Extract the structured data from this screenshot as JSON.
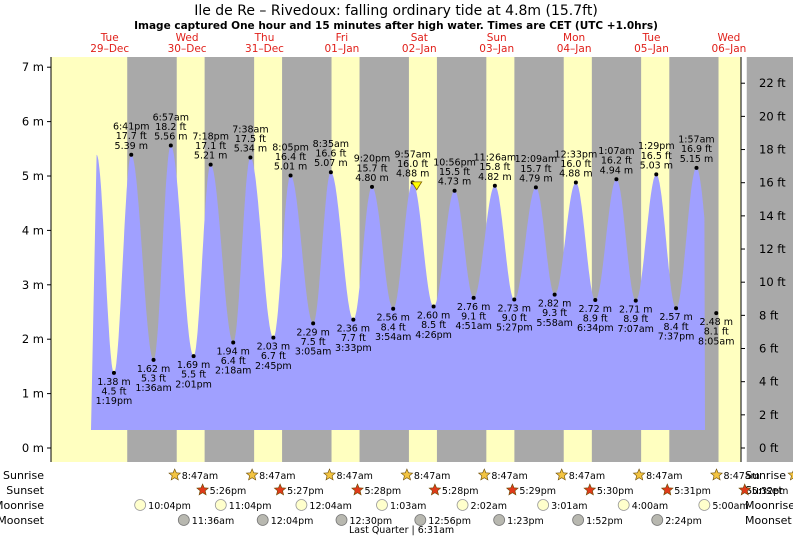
{
  "title": "Ile de Re – Rivedoux: falling  ordinary tide at 4.8m (15.7ft)",
  "subtitle": "Image captured One hour and 15 minutes after high water. Times are CET (UTC +1.0hrs)",
  "colors": {
    "night": "#a9a9a9",
    "day": "#ffffc0",
    "water": "#a0a0ff",
    "accent": "#e0201a"
  },
  "chart_data": {
    "type": "area",
    "ylim_m": [
      -0.25,
      7.3
    ],
    "yticks_m": [
      0,
      1,
      2,
      3,
      4,
      5,
      6,
      7
    ],
    "yticks_m_labels": [
      "0 m",
      "1 m",
      "2 m",
      "3 m",
      "4 m",
      "5 m",
      "6 m",
      "7 m"
    ],
    "yticks_ft": [
      0,
      2,
      4,
      6,
      8,
      10,
      12,
      14,
      16,
      18,
      20,
      22
    ],
    "yticks_ft_labels": [
      "0 ft",
      "2 ft",
      "4 ft",
      "6 ft",
      "8 ft",
      "10 ft",
      "12 ft",
      "14 ft",
      "16 ft",
      "18 ft",
      "20 ft",
      "22 ft"
    ],
    "days": [
      {
        "dow": "Tue",
        "date": "29–Dec"
      },
      {
        "dow": "Wed",
        "date": "30–Dec"
      },
      {
        "dow": "Thu",
        "date": "31–Dec"
      },
      {
        "dow": "Fri",
        "date": "01–Jan"
      },
      {
        "dow": "Sat",
        "date": "02–Jan"
      },
      {
        "dow": "Sun",
        "date": "03–Jan"
      },
      {
        "dow": "Mon",
        "date": "04–Jan"
      },
      {
        "dow": "Tue",
        "date": "05–Jan"
      },
      {
        "dow": "Wed",
        "date": "06–Jan"
      }
    ],
    "tides": [
      {
        "type": "low",
        "day": 0,
        "time": "1:19 pm",
        "ft": "4.5 ft",
        "m": 1.38
      },
      {
        "type": "high",
        "day": 0,
        "time": "6:41 pm",
        "ft": "17.7 ft",
        "m": 5.39
      },
      {
        "type": "low",
        "day": 1,
        "time": "1:36 am",
        "ft": "5.3 ft",
        "m": 1.62
      },
      {
        "type": "high",
        "day": 1,
        "time": "6:57 am",
        "ft": "18.2 ft",
        "m": 5.56
      },
      {
        "type": "low",
        "day": 1,
        "time": "2:01 pm",
        "ft": "5.5 ft",
        "m": 1.69
      },
      {
        "type": "high",
        "day": 1,
        "time": "7:18 pm",
        "ft": "17.1 ft",
        "m": 5.21
      },
      {
        "type": "low",
        "day": 2,
        "time": "2:18 am",
        "ft": "6.4 ft",
        "m": 1.94
      },
      {
        "type": "high",
        "day": 2,
        "time": "7:38 am",
        "ft": "17.5 ft",
        "m": 5.34
      },
      {
        "type": "low",
        "day": 2,
        "time": "2:45 pm",
        "ft": "6.7 ft",
        "m": 2.03
      },
      {
        "type": "high",
        "day": 2,
        "time": "8:05 pm",
        "ft": "16.4 ft",
        "m": 5.01
      },
      {
        "type": "low",
        "day": 3,
        "time": "3:05 am",
        "ft": "7.5 ft",
        "m": 2.29
      },
      {
        "type": "high",
        "day": 3,
        "time": "8:35 am",
        "ft": "16.6 ft",
        "m": 5.07
      },
      {
        "type": "low",
        "day": 3,
        "time": "3:33 pm",
        "ft": "7.7 ft",
        "m": 2.36
      },
      {
        "type": "high",
        "day": 3,
        "time": "9:20 pm",
        "ft": "15.7 ft",
        "m": 4.8
      },
      {
        "type": "low",
        "day": 4,
        "time": "3:54 am",
        "ft": "8.4 ft",
        "m": 2.56
      },
      {
        "type": "high",
        "day": 4,
        "time": "9:57 am",
        "ft": "16.0 ft",
        "m": 4.88
      },
      {
        "type": "low",
        "day": 4,
        "time": "4:26 pm",
        "ft": "8.5 ft",
        "m": 2.6
      },
      {
        "type": "high",
        "day": 4,
        "time": "10:56 pm",
        "ft": "15.5 ft",
        "m": 4.73
      },
      {
        "type": "low",
        "day": 5,
        "time": "4:51 am",
        "ft": "9.1 ft",
        "m": 2.76
      },
      {
        "type": "high",
        "day": 5,
        "time": "11:26 am",
        "ft": "15.8 ft",
        "m": 4.82
      },
      {
        "type": "low",
        "day": 5,
        "time": "5:27 pm",
        "ft": "9.0 ft",
        "m": 2.73
      },
      {
        "type": "high",
        "day": 6,
        "time": "12:09 am",
        "ft": "15.7 ft",
        "m": 4.79
      },
      {
        "type": "low",
        "day": 6,
        "time": "5:58 am",
        "ft": "9.3 ft",
        "m": 2.82
      },
      {
        "type": "high",
        "day": 6,
        "time": "12:33 pm",
        "ft": "16.0 ft",
        "m": 4.88
      },
      {
        "type": "low",
        "day": 6,
        "time": "6:34 pm",
        "ft": "8.9 ft",
        "m": 2.72
      },
      {
        "type": "high",
        "day": 7,
        "time": "1:07 am",
        "ft": "16.2 ft",
        "m": 4.94
      },
      {
        "type": "low",
        "day": 7,
        "time": "7:07 am",
        "ft": "8.9 ft",
        "m": 2.71
      },
      {
        "type": "high",
        "day": 7,
        "time": "1:29 pm",
        "ft": "16.5 ft",
        "m": 5.03
      },
      {
        "type": "low",
        "day": 7,
        "time": "7:37 pm",
        "ft": "8.4 ft",
        "m": 2.57
      },
      {
        "type": "high",
        "day": 8,
        "time": "1:57 am",
        "ft": "16.9 ft",
        "m": 5.15
      },
      {
        "type": "low",
        "day": 8,
        "time": "8:05 am",
        "ft": "8.1 ft",
        "m": 2.48
      }
    ],
    "current_level_m": 4.8,
    "current_marker": {
      "day": 4,
      "time": "11:12 am"
    },
    "sun": [
      {
        "day": 1,
        "sunrise": "8:47am",
        "sunset": "5:26pm"
      },
      {
        "day": 2,
        "sunrise": "8:47am",
        "sunset": "5:27pm"
      },
      {
        "day": 3,
        "sunrise": "8:47am",
        "sunset": "5:28pm"
      },
      {
        "day": 4,
        "sunrise": "8:47am",
        "sunset": "5:28pm"
      },
      {
        "day": 5,
        "sunrise": "8:47am",
        "sunset": "5:29pm"
      },
      {
        "day": 6,
        "sunrise": "8:47am",
        "sunset": "5:30pm"
      },
      {
        "day": 7,
        "sunrise": "8:47am",
        "sunset": "5:31pm"
      },
      {
        "day": 8,
        "sunrise": "8:47am",
        "sunset": "5:32pm"
      },
      {
        "day": 9,
        "sunrise": "8:47am"
      }
    ],
    "moonrise": [
      {
        "day": 1,
        "time": "10:04pm"
      },
      {
        "day": 2,
        "time": "11:04pm"
      },
      {
        "day": 4,
        "time": "12:04am"
      },
      {
        "day": 5,
        "time": "1:03am"
      },
      {
        "day": 6,
        "time": "2:02am"
      },
      {
        "day": 7,
        "time": "3:01am"
      },
      {
        "day": 8,
        "time": "4:00am"
      },
      {
        "day": 9,
        "time": "5:00am"
      }
    ],
    "moonset": [
      {
        "day": 1,
        "time": "11:36am"
      },
      {
        "day": 2,
        "time": "12:04pm"
      },
      {
        "day": 3,
        "time": "12:30pm"
      },
      {
        "day": 4,
        "time": "12:56pm"
      },
      {
        "day": 5,
        "time": "1:23pm"
      },
      {
        "day": 6,
        "time": "1:52pm"
      },
      {
        "day": 7,
        "time": "2:24pm"
      }
    ],
    "row_labels": {
      "sunrise": "Sunrise",
      "sunset": "Sunset",
      "moonrise": "Moonrise",
      "moonset": "Moonset"
    },
    "moon_phase": {
      "text": "Last Quarter | 6:31am",
      "day": 4,
      "time": "6:31 am"
    }
  }
}
